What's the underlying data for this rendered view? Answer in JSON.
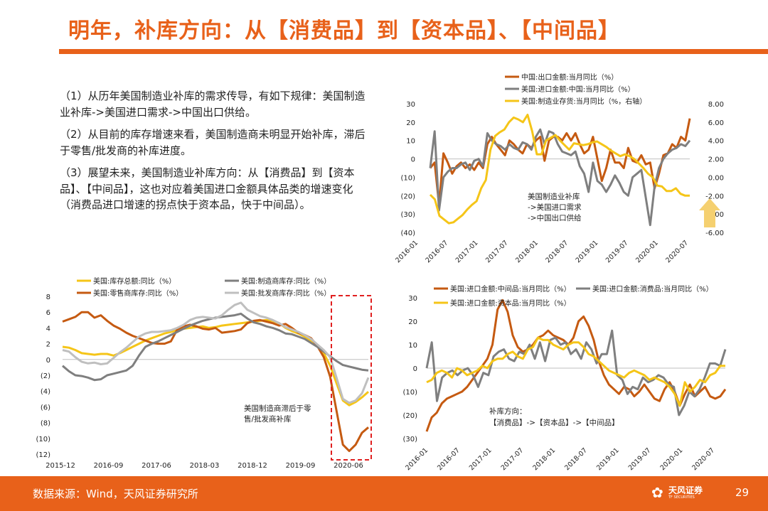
{
  "page": {
    "title": "明年，补库方向：从【消费品】到【资本品】、【中间品】",
    "paragraphs": [
      "（1）从历年美国制造业补库的需求传导，有如下规律：美国制造业补库->美国进口需求->中国出口供给。",
      "（2）从目前的库存增速来看，美国制造商未明显开始补库，滞后于零售/批发商的补库进度。",
      "（3）展望未来，美国制造业补库方向：从【消费品】到【资本品】、【中间品】，这也对应着美国进口金额具体品类的增速变化（消费品进口增速的拐点快于资本品，快于中间品）。"
    ],
    "footer_source": "数据来源：Wind，天风证券研究所",
    "logo_text": "天风证券",
    "logo_sub": "TF SECURITIES",
    "logo_icon": "tf-flower-icon",
    "page_number": "29"
  },
  "chart_data": [
    {
      "type": "line",
      "x_tick_labels": [
        "2016-01",
        "2016-07",
        "2017-01",
        "2017-07",
        "2018-01",
        "2018-07",
        "2019-01",
        "2019-07",
        "2020-01",
        "2020-07"
      ],
      "ylim": [
        -40,
        30
      ],
      "y_ticks": [
        "30",
        "20",
        "10",
        "0",
        "(10)",
        "(20)",
        "(30)",
        "(40)"
      ],
      "y2lim": [
        -6,
        8
      ],
      "y2_ticks": [
        "8.00",
        "6.00",
        "4.00",
        "2.00",
        "0.00",
        "-2.00",
        "-4.00",
        "-6.00"
      ],
      "annotation": "美国制造业补库\n->美国进口需求\n->中国出口供给",
      "arrow_color": "#F5D070",
      "series": [
        {
          "name": "中国:出口金额:当月同比（%）",
          "color": "#C55A11",
          "axis": "left",
          "values": [
            -5,
            -2,
            -25,
            3,
            -2,
            -8,
            -4,
            -2,
            -5,
            -3,
            -6,
            -2,
            -5,
            8,
            12,
            8,
            5,
            2,
            10,
            8,
            5,
            3,
            8,
            6,
            10,
            12,
            -1,
            10,
            12,
            12,
            10,
            14,
            10,
            14,
            8,
            3,
            5,
            12,
            0,
            -12,
            -5,
            5,
            -2,
            -2,
            -5,
            6,
            -1,
            -2,
            2,
            -3,
            -2,
            -16,
            -8,
            2,
            3,
            8,
            6,
            12,
            10,
            22
          ]
        },
        {
          "name": "美国:进口金额:中国:当月同比（%）",
          "color": "#7F7F7F",
          "axis": "left",
          "values": [
            -5,
            15,
            -28,
            -10,
            -7,
            -5,
            -5,
            -3,
            -2,
            -6,
            -1,
            0,
            -4,
            14,
            10,
            8,
            7,
            5,
            8,
            6,
            5,
            9,
            8,
            5,
            12,
            16,
            8,
            15,
            14,
            8,
            4,
            3,
            2,
            4,
            -4,
            -8,
            -18,
            -2,
            -12,
            -14,
            -18,
            -14,
            -9,
            -13,
            -18,
            -20,
            -10,
            -8,
            -6,
            -21,
            -36,
            -15,
            -5,
            0,
            3,
            5,
            6,
            8,
            7,
            10
          ]
        },
        {
          "name": "美国:制造业存货:当月同比（%，右轴）",
          "color": "#F5C518",
          "axis": "right",
          "values": [
            -1.9,
            -2.4,
            -4.2,
            -4.6,
            -5.0,
            -4.9,
            -4.5,
            -4.1,
            -3.5,
            -3.0,
            -2.6,
            -1.2,
            -0.3,
            3.0,
            4.5,
            4.9,
            5.2,
            6.0,
            6.5,
            6.3,
            6.0,
            6.8,
            5.0,
            2.5,
            2.5,
            4.0,
            4.3,
            4.6,
            4.0,
            3.5,
            3.0,
            3.7,
            3.6,
            3.5,
            3.6,
            3.8,
            3.9,
            3.6,
            3.3,
            2.9,
            2.6,
            2.3,
            2.5,
            2.3,
            2.0,
            1.5,
            1.0,
            0.4,
            0.0,
            -0.9,
            -1.0,
            -1.5,
            -1.5,
            -1.2,
            -1.8,
            -2.0,
            -2.0
          ]
        }
      ]
    },
    {
      "type": "line",
      "x_tick_labels": [
        "2015-12",
        "2016-09",
        "2017-06",
        "2018-03",
        "2018-12",
        "2019-09",
        "2020-06"
      ],
      "ylim": [
        -12,
        8
      ],
      "y_ticks": [
        "8",
        "6",
        "4",
        "2",
        "0",
        "(2)",
        "(4)",
        "(6)",
        "(8)",
        "(10)",
        "(12)"
      ],
      "annotation": "美国制造商滞后于零\n售/批发商补库",
      "highlight_box_color": "#E02020",
      "series": [
        {
          "name": "美国:库存总额:同比（%）",
          "color": "#F5C518",
          "values": [
            1.6,
            1.5,
            1.2,
            0.8,
            0.7,
            0.6,
            0.7,
            0.7,
            0.5,
            0.8,
            1.2,
            1.6,
            2.0,
            2.4,
            2.7,
            3.0,
            3.3,
            3.5,
            3.7,
            3.9,
            4.0,
            4.1,
            4.2,
            4.0,
            4.1,
            4.3,
            4.4,
            4.5,
            4.6,
            4.7,
            4.8,
            4.9,
            5.0,
            4.9,
            4.6,
            4.0,
            3.6,
            3.3,
            2.9,
            2.4,
            1.7,
            0.8,
            -0.8,
            -3.0,
            -5.2,
            -5.8,
            -5.4,
            -4.8,
            -4.1
          ]
        },
        {
          "name": "美国:零售商库存:同比（%）",
          "color": "#C55A11",
          "values": [
            4.8,
            5.1,
            5.4,
            6.0,
            6.0,
            5.3,
            5.6,
            4.9,
            4.3,
            3.9,
            3.4,
            3.0,
            2.7,
            2.4,
            2.1,
            2.0,
            2.0,
            2.3,
            3.8,
            4.2,
            4.4,
            4.2,
            3.9,
            3.8,
            4.0,
            3.4,
            3.5,
            3.6,
            3.8,
            4.6,
            4.9,
            5.0,
            4.8,
            4.6,
            4.3,
            4.5,
            4.0,
            3.4,
            3.1,
            2.7,
            1.7,
            0.3,
            -2.2,
            -6.5,
            -10.8,
            -11.6,
            -10.8,
            -9.3,
            -8.6
          ]
        },
        {
          "name": "美国:制造商库存:同比（%）",
          "color": "#7F7F7F",
          "values": [
            -0.8,
            -1.5,
            -2.0,
            -2.1,
            -2.3,
            -2.6,
            -2.5,
            -2.0,
            -1.8,
            -1.6,
            -1.4,
            -0.8,
            0.5,
            1.6,
            2.0,
            2.3,
            2.7,
            3.1,
            3.5,
            3.9,
            4.3,
            4.6,
            4.9,
            5.1,
            5.3,
            5.4,
            5.5,
            5.6,
            5.8,
            5.2,
            4.7,
            4.5,
            4.2,
            4.0,
            3.7,
            3.3,
            3.2,
            2.9,
            2.6,
            2.1,
            1.6,
            1.0,
            0.4,
            -0.2,
            -0.7,
            -0.9,
            -1.1,
            -1.3,
            -1.4
          ]
        },
        {
          "name": "美国:批发商库存:同比（%）",
          "color": "#BFBFBF",
          "values": [
            1.2,
            1.0,
            0.3,
            -0.3,
            -0.5,
            -0.4,
            -0.6,
            -0.5,
            0.2,
            0.9,
            1.5,
            2.2,
            2.9,
            3.3,
            3.5,
            3.5,
            3.6,
            3.7,
            4.0,
            4.4,
            5.0,
            5.3,
            5.4,
            5.3,
            5.2,
            5.6,
            6.3,
            6.9,
            7.2,
            6.3,
            5.9,
            5.5,
            5.3,
            5.0,
            4.6,
            4.1,
            3.8,
            3.5,
            3.1,
            2.6,
            1.9,
            1.2,
            0.3,
            -2.3,
            -5.0,
            -5.5,
            -5.2,
            -4.3,
            -2.3
          ]
        }
      ]
    },
    {
      "type": "line",
      "x_tick_labels": [
        "2016-01",
        "2016-07",
        "2017-01",
        "2017-07",
        "2018-01",
        "2018-07",
        "2019-01",
        "2019-07",
        "2020-01",
        "2020-07"
      ],
      "ylim": [
        -30,
        30
      ],
      "y_ticks": [
        "30",
        "20",
        "10",
        "0",
        "(10)",
        "(20)",
        "(30)"
      ],
      "annotation": "补库方向：\n【消费品】->【资本品】->【中间品】",
      "series": [
        {
          "name": "美国:进口金额:中间品:当月同比（%）",
          "color": "#C55A11",
          "values": [
            -27,
            -21,
            -19,
            -15,
            -13,
            -12,
            -11,
            -10,
            -8,
            -5,
            -2,
            1,
            4,
            10,
            25,
            29,
            24,
            14,
            9,
            7,
            8,
            10,
            13,
            14,
            16,
            14,
            13,
            12,
            10,
            13,
            20,
            22,
            18,
            12,
            3,
            -3,
            -7,
            -9,
            -11,
            -8,
            -9,
            -12,
            -10,
            -7,
            -10,
            -13,
            -14,
            -9,
            -6,
            -10,
            -16,
            -11,
            -7,
            -12,
            -10,
            -8,
            -12,
            -13,
            -12,
            -9
          ]
        },
        {
          "name": "美国:进口金额:消费品:当月同比（%）",
          "color": "#7F7F7F",
          "values": [
            0,
            11,
            -14,
            -4,
            -2,
            -1,
            -3,
            -1,
            0,
            -3,
            -8,
            -2,
            -3,
            5,
            7,
            8,
            4,
            3,
            7,
            6,
            10,
            4,
            11,
            3,
            12,
            13,
            10,
            11,
            6,
            8,
            4,
            11,
            8,
            2,
            6,
            6,
            16,
            -3,
            -5,
            -11,
            -8,
            -9,
            -4,
            -6,
            -5,
            -3,
            -4,
            -7,
            -8,
            -20,
            -16,
            -10,
            -12,
            -9,
            -4,
            2,
            2,
            1,
            8
          ]
        },
        {
          "name": "美国:进口金额:资本品:当月同比（%）",
          "color": "#F5C518",
          "values": [
            -6,
            -5,
            -2,
            -1,
            -2,
            -4,
            0,
            -1,
            -3,
            -2,
            -1,
            1,
            0,
            3,
            4,
            4,
            6,
            7,
            5,
            4,
            8,
            9,
            13,
            12,
            12,
            10,
            9,
            8,
            10,
            11,
            11,
            9,
            6,
            5,
            3,
            1,
            -1,
            -2,
            -3,
            -4,
            -2,
            -1,
            -2,
            -3,
            -5,
            -4,
            -5,
            -6,
            -8,
            -11,
            -16,
            -6,
            -10,
            -8,
            -5,
            -6,
            -3,
            -2,
            1,
            1
          ]
        }
      ]
    }
  ]
}
